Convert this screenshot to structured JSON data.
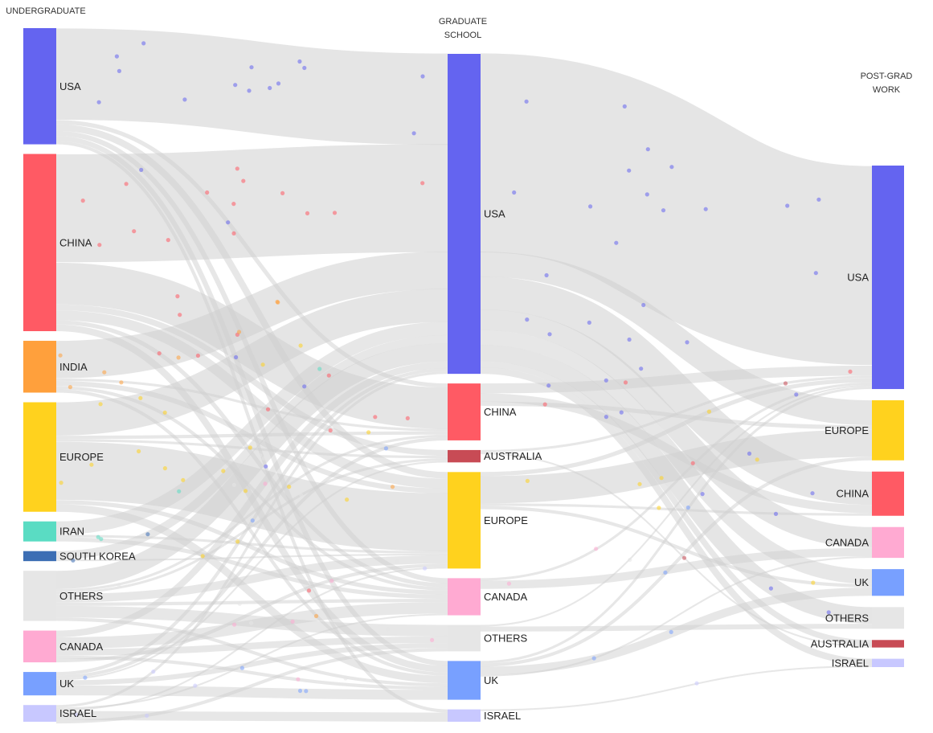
{
  "columns": [
    {
      "key": "undergrad",
      "title_lines": [
        "UNDERGRADUATE"
      ]
    },
    {
      "key": "grad",
      "title_lines": [
        "GRADUATE",
        "SCHOOL"
      ]
    },
    {
      "key": "work",
      "title_lines": [
        "POST-GRAD",
        "WORK"
      ]
    }
  ],
  "colors": {
    "USA": "#6464f0",
    "CHINA": "#ff5a64",
    "INDIA": "#ffa03c",
    "EUROPE": "#ffd21e",
    "IRAN": "#5adcc3",
    "SOUTH KOREA": "#3c6eb4",
    "OTHERS": "#e6e6e6",
    "CANADA": "#ffaad2",
    "UK": "#78a0ff",
    "ISRAEL": "#c8c8ff",
    "AUSTRALIA": "#c84b55",
    "link": "#cfcfcf"
  },
  "nodes": {
    "undergrad": [
      {
        "name": "USA",
        "value": 139
      },
      {
        "name": "CHINA",
        "value": 212
      },
      {
        "name": "INDIA",
        "value": 62
      },
      {
        "name": "EUROPE",
        "value": 131
      },
      {
        "name": "IRAN",
        "value": 24
      },
      {
        "name": "SOUTH KOREA",
        "value": 12
      },
      {
        "name": "OTHERS",
        "value": 60
      },
      {
        "name": "CANADA",
        "value": 38
      },
      {
        "name": "UK",
        "value": 28
      },
      {
        "name": "ISRAEL",
        "value": 20
      }
    ],
    "grad": [
      {
        "name": "USA",
        "value": 388
      },
      {
        "name": "CHINA",
        "value": 69
      },
      {
        "name": "AUSTRALIA",
        "value": 15
      },
      {
        "name": "EUROPE",
        "value": 117
      },
      {
        "name": "CANADA",
        "value": 45
      },
      {
        "name": "OTHERS",
        "value": 32
      },
      {
        "name": "UK",
        "value": 47
      },
      {
        "name": "ISRAEL",
        "value": 15
      }
    ],
    "work": [
      {
        "name": "USA",
        "value": 268
      },
      {
        "name": "EUROPE",
        "value": 72
      },
      {
        "name": "CHINA",
        "value": 53
      },
      {
        "name": "CANADA",
        "value": 37
      },
      {
        "name": "UK",
        "value": 32
      },
      {
        "name": "OTHERS",
        "value": 26
      },
      {
        "name": "AUSTRALIA",
        "value": 9
      },
      {
        "name": "ISRAEL",
        "value": 10
      }
    ]
  },
  "links": [
    {
      "from": "undergrad:USA",
      "to": "grad:USA",
      "value": 110
    },
    {
      "from": "undergrad:USA",
      "to": "grad:CHINA",
      "value": 5
    },
    {
      "from": "undergrad:USA",
      "to": "grad:EUROPE",
      "value": 8
    },
    {
      "from": "undergrad:USA",
      "to": "grad:CANADA",
      "value": 6
    },
    {
      "from": "undergrad:USA",
      "to": "grad:UK",
      "value": 6
    },
    {
      "from": "undergrad:USA",
      "to": "grad:ISRAEL",
      "value": 4
    },
    {
      "from": "undergrad:CHINA",
      "to": "grad:USA",
      "value": 130
    },
    {
      "from": "undergrad:CHINA",
      "to": "grad:CHINA",
      "value": 50
    },
    {
      "from": "undergrad:CHINA",
      "to": "grad:AUSTRALIA",
      "value": 7
    },
    {
      "from": "undergrad:CHINA",
      "to": "grad:EUROPE",
      "value": 12
    },
    {
      "from": "undergrad:CHINA",
      "to": "grad:CANADA",
      "value": 5
    },
    {
      "from": "undergrad:CHINA",
      "to": "grad:UK",
      "value": 8
    },
    {
      "from": "undergrad:INDIA",
      "to": "grad:USA",
      "value": 45
    },
    {
      "from": "undergrad:INDIA",
      "to": "grad:CHINA",
      "value": 3
    },
    {
      "from": "undergrad:INDIA",
      "to": "grad:EUROPE",
      "value": 6
    },
    {
      "from": "undergrad:INDIA",
      "to": "grad:CANADA",
      "value": 4
    },
    {
      "from": "undergrad:INDIA",
      "to": "grad:UK",
      "value": 4
    },
    {
      "from": "undergrad:EUROPE",
      "to": "grad:USA",
      "value": 40
    },
    {
      "from": "undergrad:EUROPE",
      "to": "grad:CHINA",
      "value": 4
    },
    {
      "from": "undergrad:EUROPE",
      "to": "grad:AUSTRALIA",
      "value": 3
    },
    {
      "from": "undergrad:EUROPE",
      "to": "grad:EUROPE",
      "value": 70
    },
    {
      "from": "undergrad:EUROPE",
      "to": "grad:CANADA",
      "value": 5
    },
    {
      "from": "undergrad:EUROPE",
      "to": "grad:UK",
      "value": 9
    },
    {
      "from": "undergrad:IRAN",
      "to": "grad:USA",
      "value": 16
    },
    {
      "from": "undergrad:IRAN",
      "to": "grad:EUROPE",
      "value": 3
    },
    {
      "from": "undergrad:IRAN",
      "to": "grad:CANADA",
      "value": 5
    },
    {
      "from": "undergrad:SOUTH KOREA",
      "to": "grad:USA",
      "value": 10
    },
    {
      "from": "undergrad:SOUTH KOREA",
      "to": "grad:EUROPE",
      "value": 2
    },
    {
      "from": "undergrad:OTHERS",
      "to": "grad:USA",
      "value": 22
    },
    {
      "from": "undergrad:OTHERS",
      "to": "grad:CHINA",
      "value": 3
    },
    {
      "from": "undergrad:OTHERS",
      "to": "grad:AUSTRALIA",
      "value": 3
    },
    {
      "from": "undergrad:OTHERS",
      "to": "grad:EUROPE",
      "value": 10
    },
    {
      "from": "undergrad:OTHERS",
      "to": "grad:CANADA",
      "value": 4
    },
    {
      "from": "undergrad:OTHERS",
      "to": "grad:OTHERS",
      "value": 14
    },
    {
      "from": "undergrad:OTHERS",
      "to": "grad:UK",
      "value": 4
    },
    {
      "from": "undergrad:CANADA",
      "to": "grad:USA",
      "value": 8
    },
    {
      "from": "undergrad:CANADA",
      "to": "grad:CANADA",
      "value": 14
    },
    {
      "from": "undergrad:CANADA",
      "to": "grad:OTHERS",
      "value": 8
    },
    {
      "from": "undergrad:CANADA",
      "to": "grad:UK",
      "value": 4
    },
    {
      "from": "undergrad:CANADA",
      "to": "grad:EUROPE",
      "value": 4
    },
    {
      "from": "undergrad:UK",
      "to": "grad:USA",
      "value": 4
    },
    {
      "from": "undergrad:UK",
      "to": "grad:CHINA",
      "value": 4
    },
    {
      "from": "undergrad:UK",
      "to": "grad:AUSTRALIA",
      "value": 2
    },
    {
      "from": "undergrad:UK",
      "to": "grad:OTHERS",
      "value": 6
    },
    {
      "from": "undergrad:UK",
      "to": "grad:UK",
      "value": 12
    },
    {
      "from": "undergrad:ISRAEL",
      "to": "grad:USA",
      "value": 3
    },
    {
      "from": "undergrad:ISRAEL",
      "to": "grad:CANADA",
      "value": 2
    },
    {
      "from": "undergrad:ISRAEL",
      "to": "grad:EUROPE",
      "value": 2
    },
    {
      "from": "undergrad:ISRAEL",
      "to": "grad:ISRAEL",
      "value": 11
    },
    {
      "from": "undergrad:ISRAEL",
      "to": "grad:OTHERS",
      "value": 4
    },
    {
      "from": "grad:USA",
      "to": "work:USA",
      "value": 240
    },
    {
      "from": "grad:USA",
      "to": "work:EUROPE",
      "value": 30
    },
    {
      "from": "grad:USA",
      "to": "work:CHINA",
      "value": 40
    },
    {
      "from": "grad:USA",
      "to": "work:CANADA",
      "value": 25
    },
    {
      "from": "grad:USA",
      "to": "work:UK",
      "value": 18
    },
    {
      "from": "grad:USA",
      "to": "work:OTHERS",
      "value": 20
    },
    {
      "from": "grad:USA",
      "to": "work:AUSTRALIA",
      "value": 7
    },
    {
      "from": "grad:USA",
      "to": "work:ISRAEL",
      "value": 8
    },
    {
      "from": "grad:CHINA",
      "to": "work:USA",
      "value": 12
    },
    {
      "from": "grad:CHINA",
      "to": "work:CHINA",
      "value": 10
    },
    {
      "from": "grad:CHINA",
      "to": "work:EUROPE",
      "value": 5
    },
    {
      "from": "grad:AUSTRALIA",
      "to": "work:USA",
      "value": 3
    },
    {
      "from": "grad:AUSTRALIA",
      "to": "work:AUSTRALIA",
      "value": 2
    },
    {
      "from": "grad:EUROPE",
      "to": "work:USA",
      "value": 5
    },
    {
      "from": "grad:EUROPE",
      "to": "work:EUROPE",
      "value": 33
    },
    {
      "from": "grad:EUROPE",
      "to": "work:CHINA",
      "value": 3
    },
    {
      "from": "grad:EUROPE",
      "to": "work:UK",
      "value": 4
    },
    {
      "from": "grad:CANADA",
      "to": "work:USA",
      "value": 3
    },
    {
      "from": "grad:CANADA",
      "to": "work:CANADA",
      "value": 10
    },
    {
      "from": "grad:OTHERS",
      "to": "work:USA",
      "value": 2
    },
    {
      "from": "grad:OTHERS",
      "to": "work:OTHERS",
      "value": 6
    },
    {
      "from": "grad:UK",
      "to": "work:USA",
      "value": 3
    },
    {
      "from": "grad:UK",
      "to": "work:EUROPE",
      "value": 4
    },
    {
      "from": "grad:UK",
      "to": "work:UK",
      "value": 10
    },
    {
      "from": "grad:UK",
      "to": "work:CANADA",
      "value": 2
    },
    {
      "from": "grad:ISRAEL",
      "to": "work:ISRAEL",
      "value": 2
    }
  ]
}
